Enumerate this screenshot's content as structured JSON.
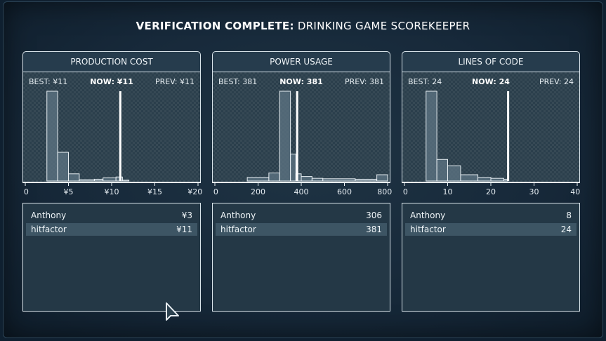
{
  "title": {
    "strong": "VERIFICATION COMPLETE:",
    "rest": "DRINKING GAME SCOREKEEPER"
  },
  "panels": [
    {
      "header": "PRODUCTION COST",
      "best": "BEST: ¥11",
      "now": "NOW: ¥11",
      "prev": "PREV: ¥11",
      "ticks": [
        "0",
        "¥5",
        "¥10",
        "¥15",
        "¥20"
      ],
      "rows": [
        {
          "name": "Anthony",
          "value": "¥3"
        },
        {
          "name": "hitfactor",
          "value": "¥11"
        }
      ]
    },
    {
      "header": "POWER USAGE",
      "best": "BEST: 381",
      "now": "NOW: 381",
      "prev": "PREV: 381",
      "ticks": [
        "0",
        "200",
        "400",
        "600",
        "800"
      ],
      "rows": [
        {
          "name": "Anthony",
          "value": "306"
        },
        {
          "name": "hitfactor",
          "value": "381"
        }
      ]
    },
    {
      "header": "LINES OF CODE",
      "best": "BEST: 24",
      "now": "NOW: 24",
      "prev": "PREV: 24",
      "ticks": [
        "0",
        "10",
        "20",
        "30",
        "40"
      ],
      "rows": [
        {
          "name": "Anthony",
          "value": "8"
        },
        {
          "name": "hitfactor",
          "value": "24"
        }
      ]
    }
  ],
  "chart_data": [
    {
      "type": "bar",
      "xlim": [
        0,
        20
      ],
      "bins": [
        [
          2.5,
          3.75,
          1.0
        ],
        [
          3.75,
          5,
          0.32
        ],
        [
          5,
          6.25,
          0.08
        ],
        [
          6.25,
          8,
          0.015
        ],
        [
          8,
          9,
          0.02
        ],
        [
          9,
          10.5,
          0.035
        ],
        [
          10.5,
          11.25,
          0.045
        ],
        [
          11.25,
          12,
          0.01
        ]
      ],
      "marker": 11
    },
    {
      "type": "bar",
      "xlim": [
        0,
        800
      ],
      "bins": [
        [
          150,
          250,
          0.04
        ],
        [
          250,
          300,
          0.09
        ],
        [
          300,
          350,
          1.0
        ],
        [
          350,
          375,
          0.3
        ],
        [
          375,
          400,
          0.08
        ],
        [
          400,
          450,
          0.05
        ],
        [
          450,
          500,
          0.03
        ],
        [
          500,
          650,
          0.025
        ],
        [
          650,
          750,
          0.02
        ],
        [
          750,
          800,
          0.07
        ]
      ],
      "marker": 381
    },
    {
      "type": "bar",
      "xlim": [
        0,
        40
      ],
      "bins": [
        [
          5,
          7.5,
          1.0
        ],
        [
          7.5,
          10,
          0.24
        ],
        [
          10,
          13,
          0.17
        ],
        [
          13,
          17,
          0.07
        ],
        [
          17,
          20,
          0.04
        ],
        [
          20,
          23,
          0.03
        ],
        [
          23,
          24,
          0.02
        ]
      ],
      "marker": 24
    }
  ]
}
